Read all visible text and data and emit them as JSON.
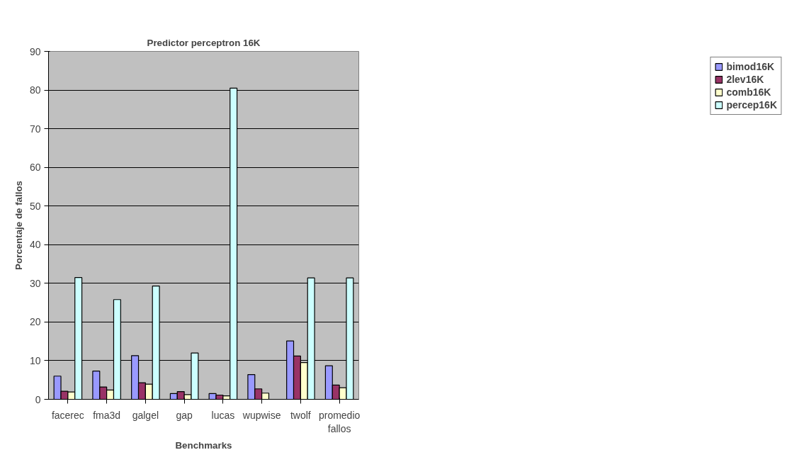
{
  "chart_data": {
    "type": "bar",
    "title": "Predictor perceptron 16K",
    "xlabel": "Benchmarks",
    "ylabel": "Porcentaje de fallos",
    "categories": [
      "facerec",
      "fma3d",
      "galgel",
      "gap",
      "lucas",
      "wupwise",
      "twolf",
      "promedio fallos"
    ],
    "series": [
      {
        "name": "bimod16K",
        "color": "#9999ff",
        "values": [
          6.0,
          7.3,
          11.3,
          1.5,
          1.5,
          6.4,
          15.1,
          8.7
        ]
      },
      {
        "name": "2lev16K",
        "color": "#993366",
        "values": [
          2.1,
          3.2,
          4.3,
          2.0,
          1.1,
          2.7,
          11.2,
          3.7
        ]
      },
      {
        "name": "comb16K",
        "color": "#ffffcc",
        "values": [
          1.9,
          2.4,
          3.9,
          1.2,
          0.9,
          1.6,
          9.5,
          3.0
        ]
      },
      {
        "name": "percep16K",
        "color": "#ccffff",
        "values": [
          31.5,
          25.8,
          29.3,
          12.0,
          80.5,
          null,
          31.4,
          31.4
        ]
      }
    ],
    "ylim": [
      0,
      90
    ],
    "yticks": [
      0,
      10,
      20,
      30,
      40,
      50,
      60,
      70,
      80,
      90
    ],
    "grid": "y",
    "legend": "right"
  }
}
